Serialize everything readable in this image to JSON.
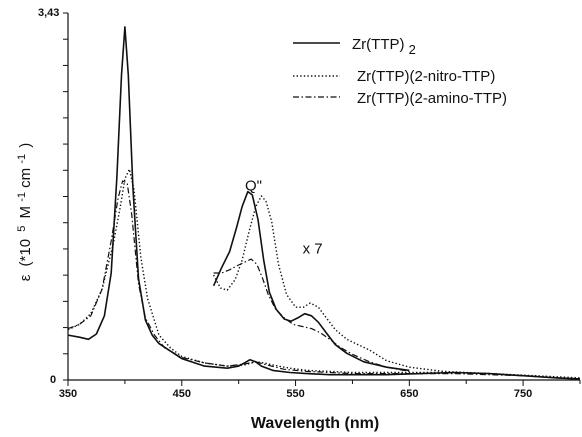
{
  "chart_data": {
    "type": "line",
    "xlabel": "Wavelength (nm)",
    "ylabel": {
      "symbol": "ε",
      "prefix": "(*10",
      "exp5": "5",
      "mid": " M",
      "exp_neg1a": "-1",
      "cm": " cm",
      "exp_neg1b": "-1",
      "close": ")"
    },
    "xlim": [
      350,
      800
    ],
    "ylim": [
      0,
      3.43
    ],
    "x_tick_labels": [
      "350",
      "450",
      "550",
      "650",
      "750"
    ],
    "x_tick_values": [
      350,
      450,
      550,
      650,
      750
    ],
    "y_tick_labels": [
      "0",
      "3,43"
    ],
    "y_tick_values": [
      0,
      3.43
    ],
    "grid": false,
    "legend_position": "top-right",
    "annotations": [
      {
        "text": "Q\"",
        "x": 513,
        "y": 1.77
      },
      {
        "text": "x 7",
        "x": 565,
        "y": 1.18
      }
    ],
    "series": [
      {
        "name": "Zr(TTP)2",
        "name_base": "Zr(TTP)",
        "name_sub": "2",
        "style": "solid",
        "x": [
          350,
          360,
          368,
          375,
          382,
          388,
          393,
          397,
          400,
          403,
          407,
          412,
          418,
          424,
          430,
          440,
          450,
          470,
          490,
          500,
          505,
          510,
          515,
          520,
          530,
          545,
          560,
          580,
          600,
          630,
          660,
          690,
          720,
          750,
          780,
          800
        ],
        "y": [
          0.42,
          0.4,
          0.38,
          0.43,
          0.6,
          1.0,
          1.9,
          2.85,
          3.3,
          2.85,
          1.8,
          0.95,
          0.56,
          0.42,
          0.34,
          0.27,
          0.2,
          0.13,
          0.11,
          0.13,
          0.16,
          0.19,
          0.17,
          0.13,
          0.09,
          0.07,
          0.06,
          0.05,
          0.05,
          0.05,
          0.06,
          0.07,
          0.06,
          0.04,
          0.02,
          0.01
        ]
      },
      {
        "name": "Zr(TTP)(2-nitro-TTP)",
        "style": "dotted",
        "x": [
          350,
          360,
          370,
          380,
          390,
          396,
          400,
          404,
          408,
          414,
          420,
          430,
          440,
          450,
          470,
          490,
          505,
          515,
          522,
          530,
          545,
          560,
          580,
          600,
          630,
          660,
          690,
          720,
          750,
          780,
          800
        ],
        "y": [
          0.47,
          0.52,
          0.62,
          0.85,
          1.28,
          1.62,
          1.88,
          1.97,
          1.78,
          1.15,
          0.76,
          0.42,
          0.3,
          0.22,
          0.16,
          0.13,
          0.14,
          0.17,
          0.16,
          0.14,
          0.11,
          0.09,
          0.08,
          0.07,
          0.07,
          0.07,
          0.07,
          0.06,
          0.04,
          0.02,
          0.01
        ]
      },
      {
        "name": "Zr(TTP)(2-amino-TTP)",
        "style": "dashdot",
        "x": [
          350,
          360,
          370,
          380,
          388,
          394,
          398,
          402,
          406,
          412,
          418,
          426,
          435,
          450,
          470,
          490,
          505,
          515,
          525,
          540,
          560,
          580,
          600,
          630,
          660,
          690,
          720,
          750,
          780,
          800
        ],
        "y": [
          0.48,
          0.52,
          0.6,
          0.85,
          1.3,
          1.7,
          1.86,
          1.84,
          1.55,
          0.9,
          0.58,
          0.42,
          0.3,
          0.21,
          0.16,
          0.13,
          0.15,
          0.17,
          0.14,
          0.1,
          0.08,
          0.07,
          0.06,
          0.06,
          0.06,
          0.06,
          0.05,
          0.04,
          0.02,
          0.01
        ]
      }
    ],
    "inset_x7": [
      {
        "name": "Zr(TTP)2 x 7",
        "style": "solid",
        "x": [
          478,
          485,
          492,
          498,
          503,
          508,
          512,
          517,
          522,
          527,
          533,
          540,
          546,
          552,
          558,
          564,
          570,
          577,
          585,
          595,
          610,
          630,
          650
        ],
        "y": [
          0.88,
          1.05,
          1.2,
          1.42,
          1.62,
          1.76,
          1.73,
          1.5,
          1.12,
          0.82,
          0.66,
          0.57,
          0.55,
          0.58,
          0.62,
          0.6,
          0.54,
          0.44,
          0.33,
          0.25,
          0.17,
          0.12,
          0.09
        ]
      },
      {
        "name": "Zr(TTP)(2-nitro-TTP) x 7",
        "style": "dotted",
        "x": [
          478,
          484,
          490,
          497,
          503,
          509,
          515,
          520,
          524,
          529,
          535,
          542,
          550,
          557,
          563,
          570,
          577,
          585,
          595,
          605,
          615,
          630,
          650,
          680,
          720,
          760,
          800
        ],
        "y": [
          0.98,
          0.86,
          0.84,
          0.94,
          1.12,
          1.38,
          1.62,
          1.72,
          1.67,
          1.48,
          1.08,
          0.8,
          0.68,
          0.68,
          0.72,
          0.68,
          0.58,
          0.47,
          0.38,
          0.33,
          0.28,
          0.18,
          0.12,
          0.08,
          0.06,
          0.04,
          0.02
        ]
      },
      {
        "name": "Zr(TTP)(2-amino-TTP) x 7",
        "style": "dashdot",
        "x": [
          478,
          485,
          492,
          499,
          505,
          511,
          516,
          521,
          526,
          532,
          540,
          548,
          556,
          564,
          572,
          580,
          590,
          600,
          615,
          630,
          650
        ],
        "y": [
          1.0,
          1.0,
          1.03,
          1.07,
          1.1,
          1.13,
          1.08,
          0.95,
          0.8,
          0.67,
          0.58,
          0.52,
          0.5,
          0.48,
          0.44,
          0.38,
          0.3,
          0.24,
          0.17,
          0.12,
          0.08
        ]
      }
    ]
  }
}
